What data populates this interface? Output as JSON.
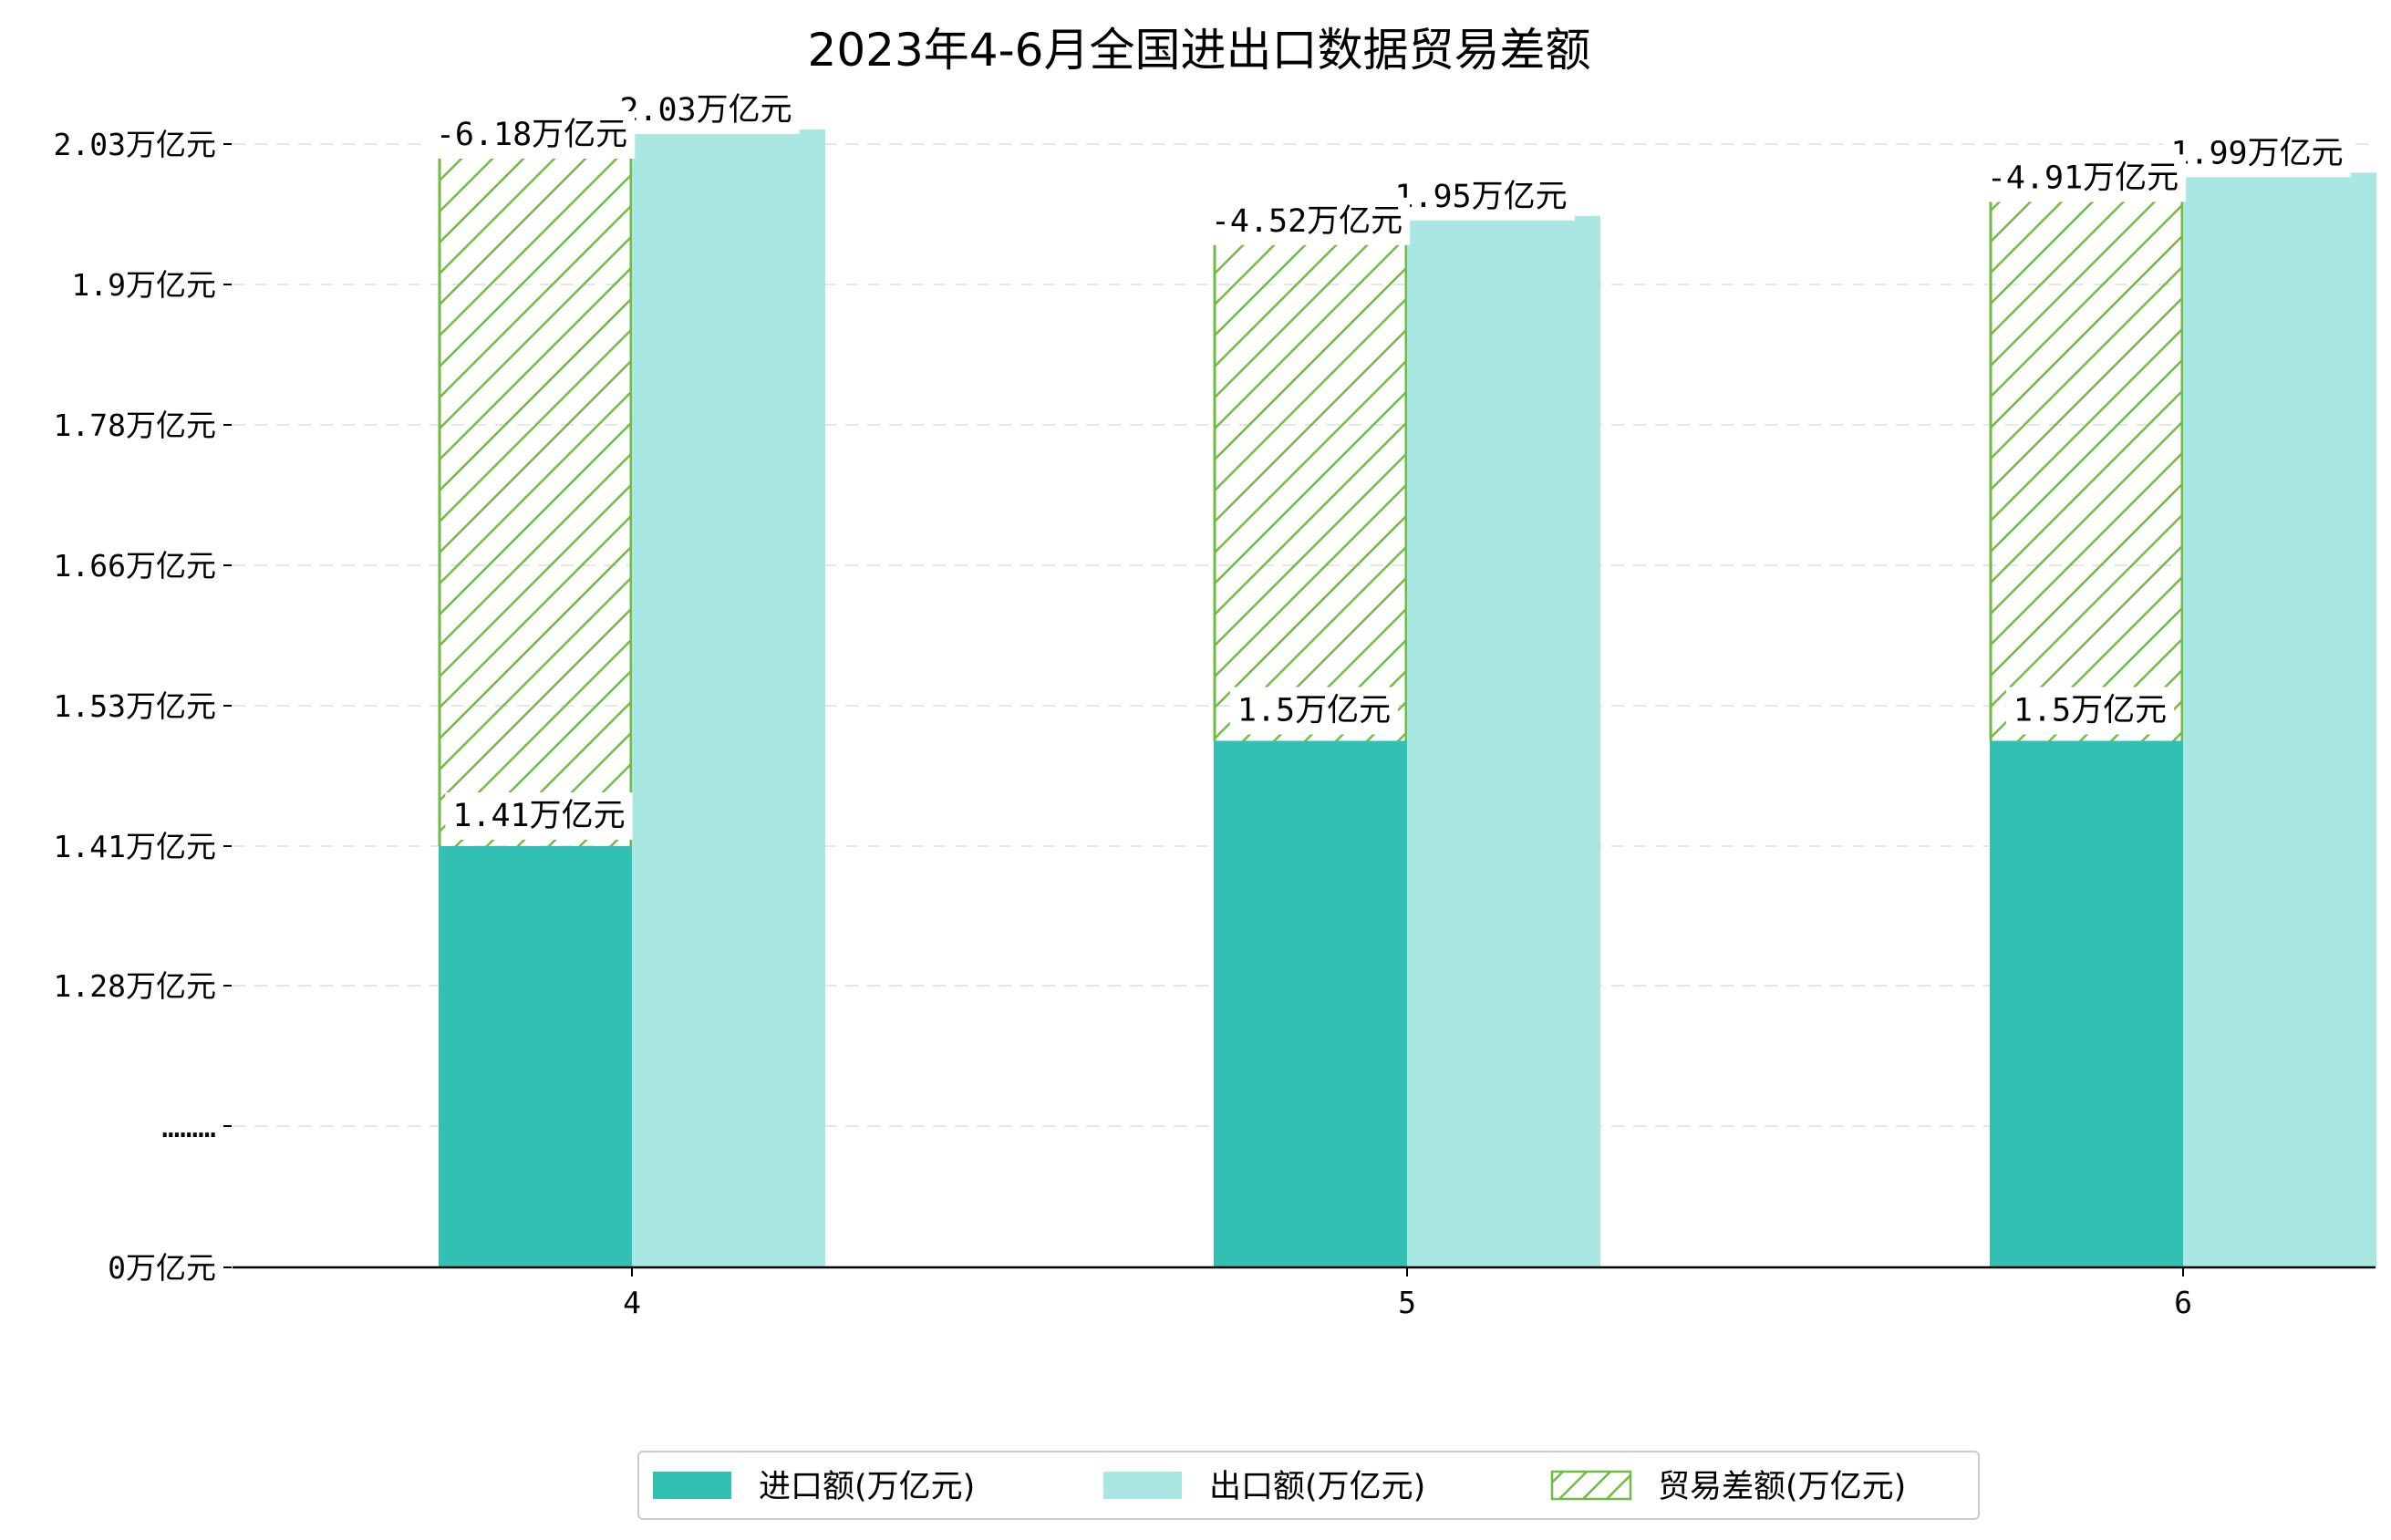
{
  "chart_data": {
    "type": "bar",
    "title": "2023年4-6月全国进出口数据贸易差额",
    "categories": [
      "4",
      "5",
      "6"
    ],
    "y_ticks": [
      {
        "label": "0万亿元",
        "value": 0
      },
      {
        "label": "………",
        "value": 1.15
      },
      {
        "label": "1.28万亿元",
        "value": 1.28
      },
      {
        "label": "1.41万亿元",
        "value": 1.41
      },
      {
        "label": "1.53万亿元",
        "value": 1.53
      },
      {
        "label": "1.66万亿元",
        "value": 1.66
      },
      {
        "label": "1.78万亿元",
        "value": 1.78
      },
      {
        "label": "1.9万亿元",
        "value": 1.9
      },
      {
        "label": "2.03万亿元",
        "value": 2.03
      }
    ],
    "grid": "horizontal dashed",
    "legend_position": "bottom-center",
    "series": [
      {
        "name": "进口额(万亿元)",
        "values": [
          1.41,
          1.5,
          1.5
        ],
        "labels": [
          "1.41万亿元",
          "1.5万亿元",
          "1.5万亿元"
        ],
        "color": "#31c0b2",
        "style": "solid"
      },
      {
        "name": "出口额(万亿元)",
        "values": [
          2.03,
          1.95,
          1.99
        ],
        "labels": [
          "2.03万亿元",
          "1.95万亿元",
          "1.99万亿元"
        ],
        "color": "#a9e8e2",
        "style": "solid"
      },
      {
        "name": "贸易差额(万亿元)",
        "values": [
          -6.18,
          -4.52,
          -4.91
        ],
        "labels": [
          "-6.18万亿元",
          "-4.52万亿元",
          "-4.91万亿元"
        ],
        "color": "#72bb42",
        "style": "hatched"
      }
    ]
  }
}
